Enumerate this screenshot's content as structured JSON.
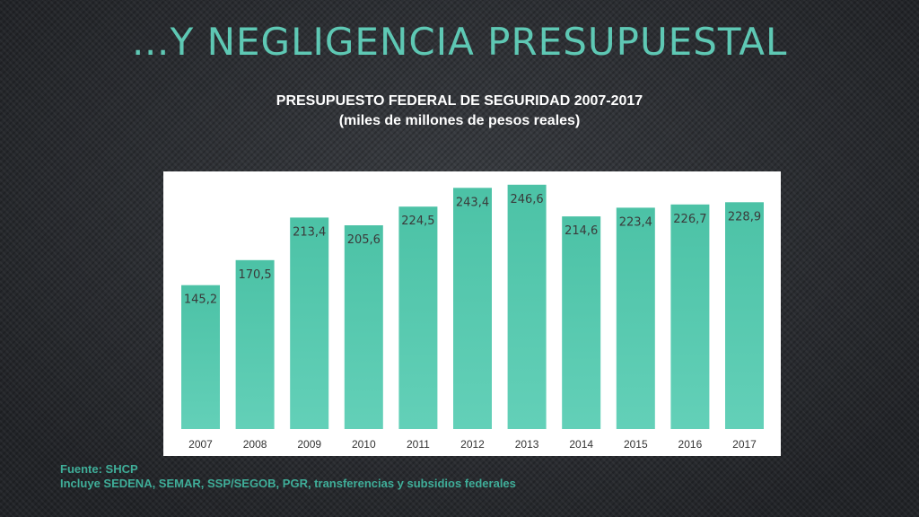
{
  "colors": {
    "accent": "#5ec8b4",
    "bar": "#4fc3a8",
    "footnote": "#3fae99",
    "panel": "#ffffff"
  },
  "slide": {
    "title": "…Y NEGLIGENCIA PRESUPUESTAL"
  },
  "footnote": {
    "source": "Fuente: SHCP",
    "note": "Incluye SEDENA, SEMAR, SSP/SEGOB, PGR, transferencias y subsidios federales"
  },
  "chart_data": {
    "type": "bar",
    "title": "PRESUPUESTO FEDERAL DE SEGURIDAD 2007-2017",
    "subtitle": "(miles de millones de pesos reales)",
    "categories": [
      "2007",
      "2008",
      "2009",
      "2010",
      "2011",
      "2012",
      "2013",
      "2014",
      "2015",
      "2016",
      "2017"
    ],
    "values": [
      145.2,
      170.5,
      213.4,
      205.6,
      224.5,
      243.4,
      246.6,
      214.6,
      223.4,
      226.7,
      228.9
    ],
    "data_labels": [
      "145,2",
      "170,5",
      "213,4",
      "205,6",
      "224,5",
      "243,4",
      "246,6",
      "214,6",
      "223,4",
      "226,7",
      "228,9"
    ],
    "xlabel": "",
    "ylabel": "",
    "ylim": [
      0,
      260
    ],
    "grid": false,
    "legend": "none"
  }
}
